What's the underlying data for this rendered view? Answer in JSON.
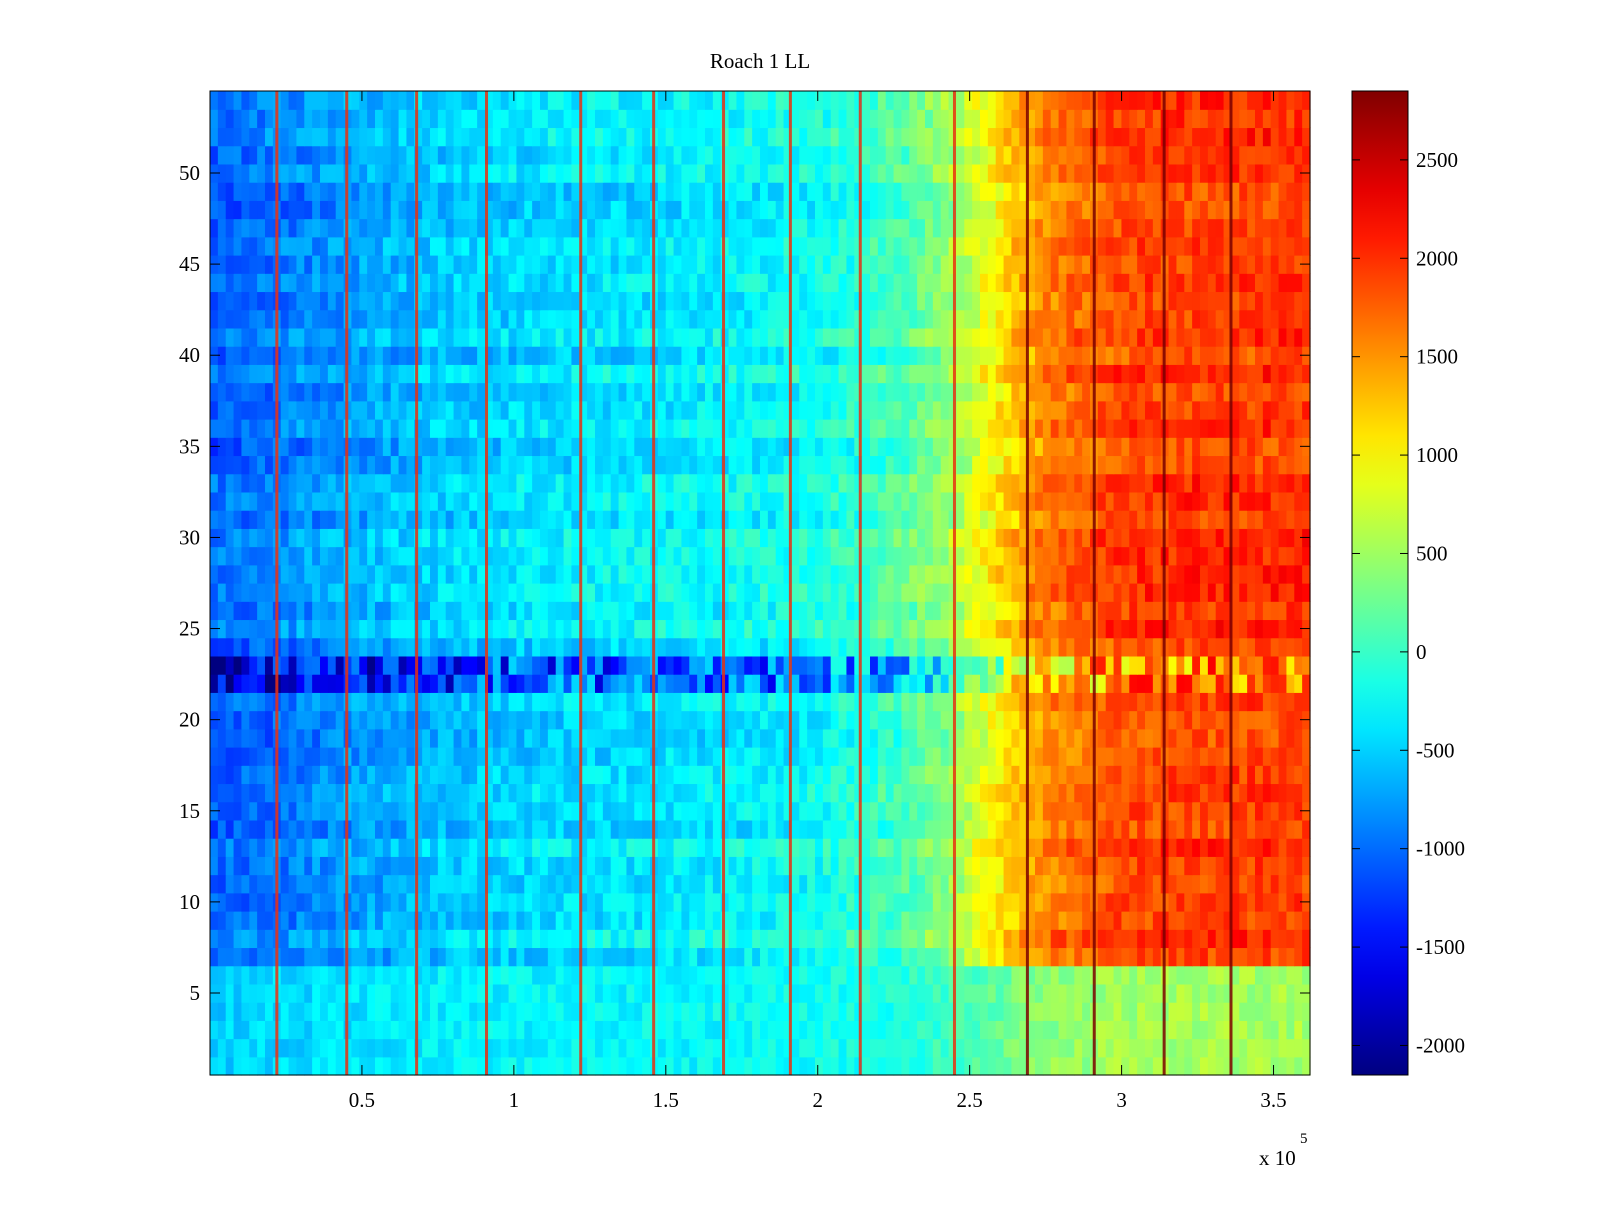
{
  "chart_data": {
    "type": "heatmap",
    "title": "Roach 1 LL",
    "xlabel": "",
    "ylabel": "",
    "x_multiplier_label": "x 10",
    "x_multiplier_exponent": "5",
    "xlim": [
      0,
      3.62
    ],
    "ylim": [
      0.5,
      54.5
    ],
    "x_ticks": [
      {
        "value": 0.5,
        "label": "0.5"
      },
      {
        "value": 1,
        "label": "1"
      },
      {
        "value": 1.5,
        "label": "1.5"
      },
      {
        "value": 2,
        "label": "2"
      },
      {
        "value": 2.5,
        "label": "2.5"
      },
      {
        "value": 3,
        "label": "3"
      },
      {
        "value": 3.5,
        "label": "3.5"
      }
    ],
    "y_ticks": [
      {
        "value": 5,
        "label": "5"
      },
      {
        "value": 10,
        "label": "10"
      },
      {
        "value": 15,
        "label": "15"
      },
      {
        "value": 20,
        "label": "20"
      },
      {
        "value": 25,
        "label": "25"
      },
      {
        "value": 30,
        "label": "30"
      },
      {
        "value": 35,
        "label": "35"
      },
      {
        "value": 40,
        "label": "40"
      },
      {
        "value": 45,
        "label": "45"
      },
      {
        "value": 50,
        "label": "50"
      }
    ],
    "colorbar": {
      "colormap": "jet",
      "clim": [
        -2150,
        2850
      ],
      "ticks": [
        {
          "value": -2000,
          "label": "-2000"
        },
        {
          "value": -1500,
          "label": "-1500"
        },
        {
          "value": -1000,
          "label": "-1000"
        },
        {
          "value": -500,
          "label": "-500"
        },
        {
          "value": 0,
          "label": "0"
        },
        {
          "value": 500,
          "label": "500"
        },
        {
          "value": 1000,
          "label": "1000"
        },
        {
          "value": 1500,
          "label": "1500"
        },
        {
          "value": 2000,
          "label": "2000"
        },
        {
          "value": 2500,
          "label": "2500"
        }
      ]
    },
    "rows": 54,
    "trend_profile": {
      "x": [
        0,
        0.25,
        0.5,
        0.75,
        1.0,
        1.25,
        1.5,
        1.75,
        2.0,
        2.25,
        2.45,
        2.6,
        2.75,
        3.0,
        3.25,
        3.62
      ],
      "value": [
        -1050,
        -900,
        -700,
        -550,
        -450,
        -400,
        -350,
        -300,
        -200,
        50,
        500,
        1100,
        1600,
        1900,
        1950,
        1950
      ]
    },
    "bright_columns_x": [
      0.22,
      0.45,
      0.68,
      0.91,
      1.22,
      1.46,
      1.69,
      1.91,
      2.14,
      2.45,
      2.69,
      2.91,
      3.14,
      3.36
    ],
    "anomaly_band_y": [
      21.5,
      23.5
    ],
    "low_band_y": [
      0.5,
      6.5
    ]
  }
}
